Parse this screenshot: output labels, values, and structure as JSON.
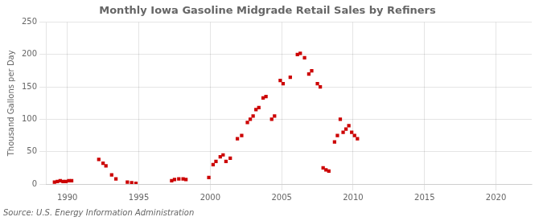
{
  "chart_data": {
    "type": "scatter",
    "title": "Monthly Iowa Gasoline Midgrade Retail Sales by Refiners",
    "ylabel": "Thousand Gallons per Day",
    "annotation": "Source: U.S. Energy Information Administration",
    "color": "#cc0000",
    "marker": "square",
    "grid": true,
    "xlim": [
      1988.5,
      2022.5
    ],
    "ylim": [
      0,
      250
    ],
    "xticks": [
      1990,
      1995,
      2000,
      2005,
      2010,
      2015,
      2020
    ],
    "yticks": [
      0,
      50,
      100,
      150,
      200,
      250
    ],
    "x": [
      1989.1,
      1989.3,
      1989.5,
      1989.7,
      1989.9,
      1990.1,
      1990.3,
      1992.2,
      1992.5,
      1992.7,
      1993.1,
      1993.4,
      1994.2,
      1994.5,
      1994.8,
      1997.3,
      1997.5,
      1997.8,
      1998.1,
      1998.3,
      1999.9,
      2000.2,
      2000.4,
      2000.7,
      2000.9,
      2001.1,
      2001.4,
      2001.9,
      2002.2,
      2002.6,
      2002.8,
      2003.0,
      2003.2,
      2003.4,
      2003.7,
      2003.9,
      2004.3,
      2004.5,
      2004.9,
      2005.1,
      2005.6,
      2006.1,
      2006.3,
      2006.6,
      2006.9,
      2007.1,
      2007.5,
      2007.7,
      2007.9,
      2008.1,
      2008.3,
      2008.7,
      2008.9,
      2009.1,
      2009.3,
      2009.5,
      2009.7,
      2009.9,
      2010.1,
      2010.3
    ],
    "values": [
      3,
      4,
      5,
      4,
      4,
      5,
      5,
      38,
      32,
      28,
      14,
      8,
      3,
      2,
      1,
      5,
      7,
      8,
      8,
      7,
      10,
      30,
      35,
      42,
      45,
      35,
      40,
      70,
      75,
      95,
      100,
      105,
      115,
      118,
      133,
      135,
      100,
      105,
      160,
      155,
      165,
      200,
      202,
      195,
      170,
      175,
      155,
      150,
      25,
      22,
      20,
      65,
      75,
      100,
      80,
      85,
      90,
      80,
      75,
      70
    ]
  }
}
